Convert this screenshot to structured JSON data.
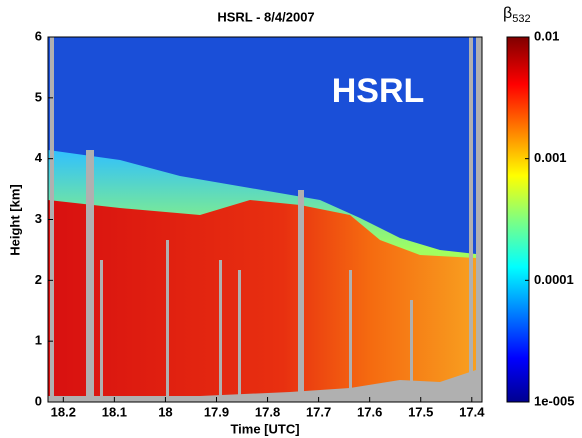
{
  "chart_data": {
    "type": "heatmap",
    "title": "HSRL - 8/4/2007",
    "x_label": "Time [UTC]",
    "y_label": "Height [km]",
    "annotation": "HSRL",
    "colorbar_label": {
      "symbol": "β",
      "subscript": "532"
    },
    "xlim": [
      18.23,
      17.38
    ],
    "xticks": [
      18.2,
      18.1,
      18,
      17.9,
      17.8,
      17.7,
      17.6,
      17.5,
      17.4
    ],
    "ylim": [
      0,
      6
    ],
    "yticks": [
      0,
      1,
      2,
      3,
      4,
      5,
      6
    ],
    "clim": [
      1e-05,
      0.01
    ],
    "color_log": true,
    "cticks": [
      {
        "value": 1e-05,
        "label": "1e-005"
      },
      0.0001,
      0.001,
      0.01
    ]
  }
}
